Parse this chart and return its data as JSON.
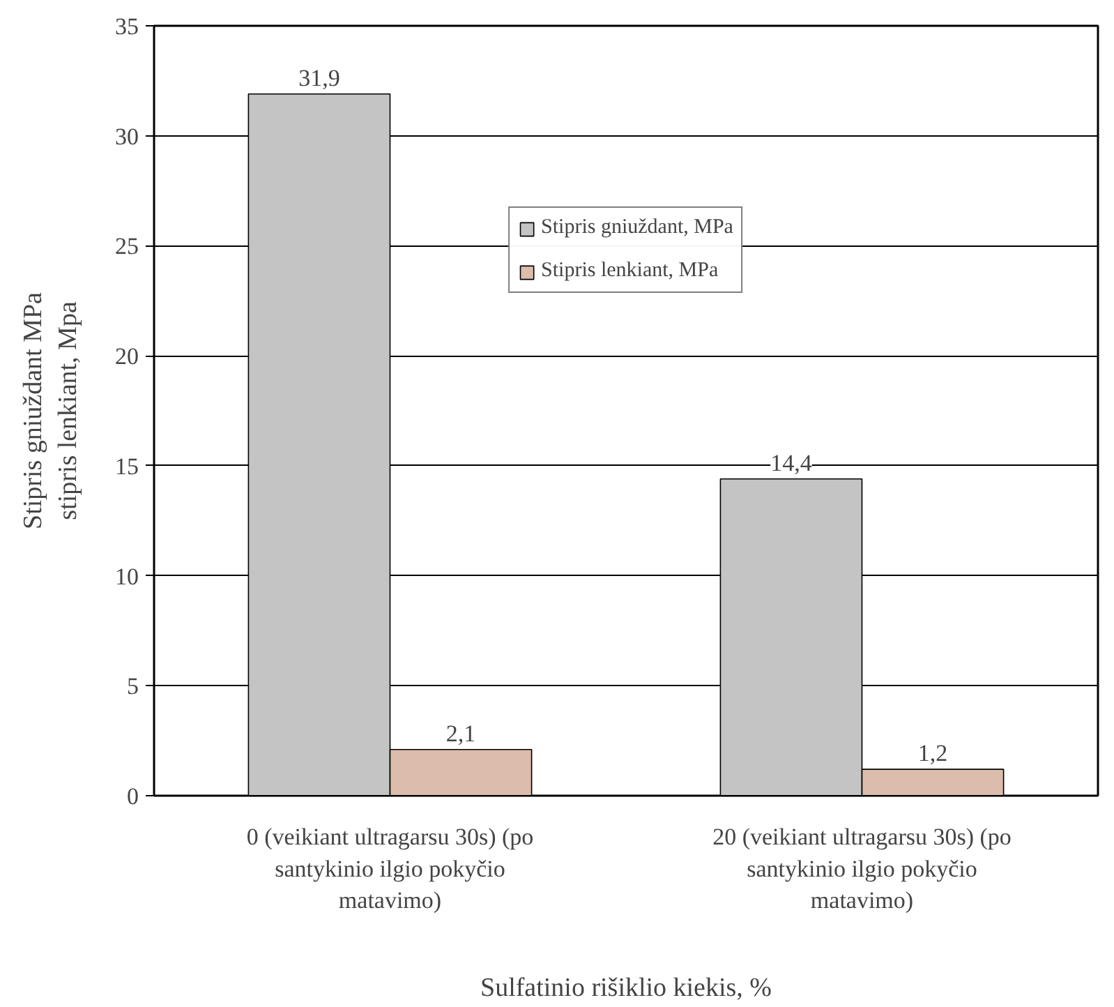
{
  "chart_data": {
    "type": "bar",
    "xlabel": "Sulfatinio rišiklio kiekis, %",
    "ylabel": "Stipris gniuždant MPa\nstipris lenkiant, Mpa",
    "categories": [
      "0 (veikiant ultragarsu 30s) (po santykinio ilgio pokyčio matavimo)",
      "20 (veikiant ultragarsu 30s) (po santykinio ilgio pokyčio matavimo)"
    ],
    "series": [
      {
        "name": "Stipris gniuždant, MPa",
        "color": "#c4c4c4",
        "values": [
          31.9,
          14.4
        ],
        "value_labels": [
          "31,9",
          "14,4"
        ]
      },
      {
        "name": "Stipris lenkiant, MPa",
        "color": "#dcbcaa",
        "values": [
          2.1,
          1.2
        ],
        "value_labels": [
          "2,1",
          "1,2"
        ]
      }
    ],
    "ylim": [
      0,
      35
    ],
    "yticks": [
      0,
      5,
      10,
      15,
      20,
      25,
      30,
      35
    ],
    "grid": "y",
    "legend": "top"
  }
}
